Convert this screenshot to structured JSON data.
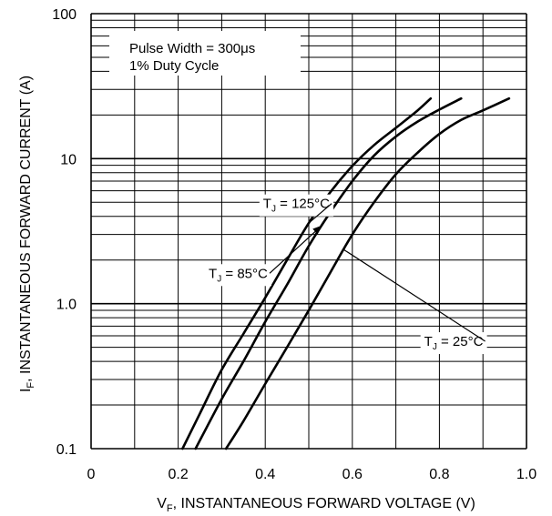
{
  "chart_data": {
    "type": "line",
    "title": "",
    "xlabel": {
      "prefix": "V",
      "sub": "F",
      "rest": ", INSTANTANEOUS FORWARD VOLTAGE (V)"
    },
    "ylabel": {
      "prefix": "I",
      "sub": "F",
      "rest": ", INSTANTANEOUS FORWARD CURRENT (A)"
    },
    "xlim": [
      0,
      1.0
    ],
    "ylim": [
      0.1,
      100
    ],
    "yscale": "log",
    "grid": true,
    "xticks": [
      {
        "value": 0,
        "label": "0"
      },
      {
        "value": 0.2,
        "label": "0.2"
      },
      {
        "value": 0.4,
        "label": "0.4"
      },
      {
        "value": 0.6,
        "label": "0.6"
      },
      {
        "value": 0.8,
        "label": "0.8"
      },
      {
        "value": 1.0,
        "label": "1.0"
      }
    ],
    "yticks": [
      {
        "value": 0.1,
        "label": "0.1"
      },
      {
        "value": 1,
        "label": "1.0"
      },
      {
        "value": 10,
        "label": "10"
      },
      {
        "value": 100,
        "label": "100"
      }
    ],
    "notes": [
      "Pulse Width = 300μs",
      "1% Duty Cycle"
    ],
    "series": [
      {
        "name": "T_J = 125°C",
        "label_main": "T",
        "label_sub": "J",
        "label_rest": " = 125°C",
        "x": [
          0.21,
          0.25,
          0.3,
          0.35,
          0.4,
          0.45,
          0.5,
          0.55,
          0.6,
          0.65,
          0.7,
          0.75,
          0.78
        ],
        "y": [
          0.1,
          0.175,
          0.35,
          0.62,
          1.1,
          2.0,
          3.6,
          5.9,
          8.9,
          12.4,
          16.3,
          21.5,
          26
        ]
      },
      {
        "name": "T_J = 85°C",
        "label_main": "T",
        "label_sub": "J",
        "label_rest": " = 85°C",
        "x": [
          0.24,
          0.3,
          0.35,
          0.4,
          0.45,
          0.5,
          0.55,
          0.6,
          0.65,
          0.7,
          0.75,
          0.8,
          0.85
        ],
        "y": [
          0.1,
          0.22,
          0.4,
          0.75,
          1.35,
          2.5,
          4.3,
          7.0,
          10.5,
          14.2,
          18.0,
          21.8,
          26
        ]
      },
      {
        "name": "T_J = 25°C",
        "label_main": "T",
        "label_sub": "J",
        "label_rest": " = 25°C",
        "x": [
          0.31,
          0.35,
          0.4,
          0.45,
          0.5,
          0.55,
          0.6,
          0.65,
          0.7,
          0.75,
          0.8,
          0.85,
          0.9,
          0.96
        ],
        "y": [
          0.1,
          0.155,
          0.28,
          0.5,
          0.9,
          1.65,
          3.0,
          5.0,
          7.8,
          11.0,
          14.8,
          18.5,
          21.5,
          26
        ]
      }
    ],
    "annotations": [
      {
        "series": 0,
        "at_x": 0.5,
        "label_x": 0.395,
        "label_y": 4.9,
        "arrow": false
      },
      {
        "series": 1,
        "at_x": 0.53,
        "label_x": 0.27,
        "label_y": 1.62,
        "arrow": true
      },
      {
        "series": 2,
        "at_x": 0.58,
        "label_x": 0.765,
        "label_y": 0.55,
        "arrow": false
      }
    ],
    "colors": {
      "line": "#000000",
      "grid": "#000000",
      "background": "#ffffff"
    }
  }
}
